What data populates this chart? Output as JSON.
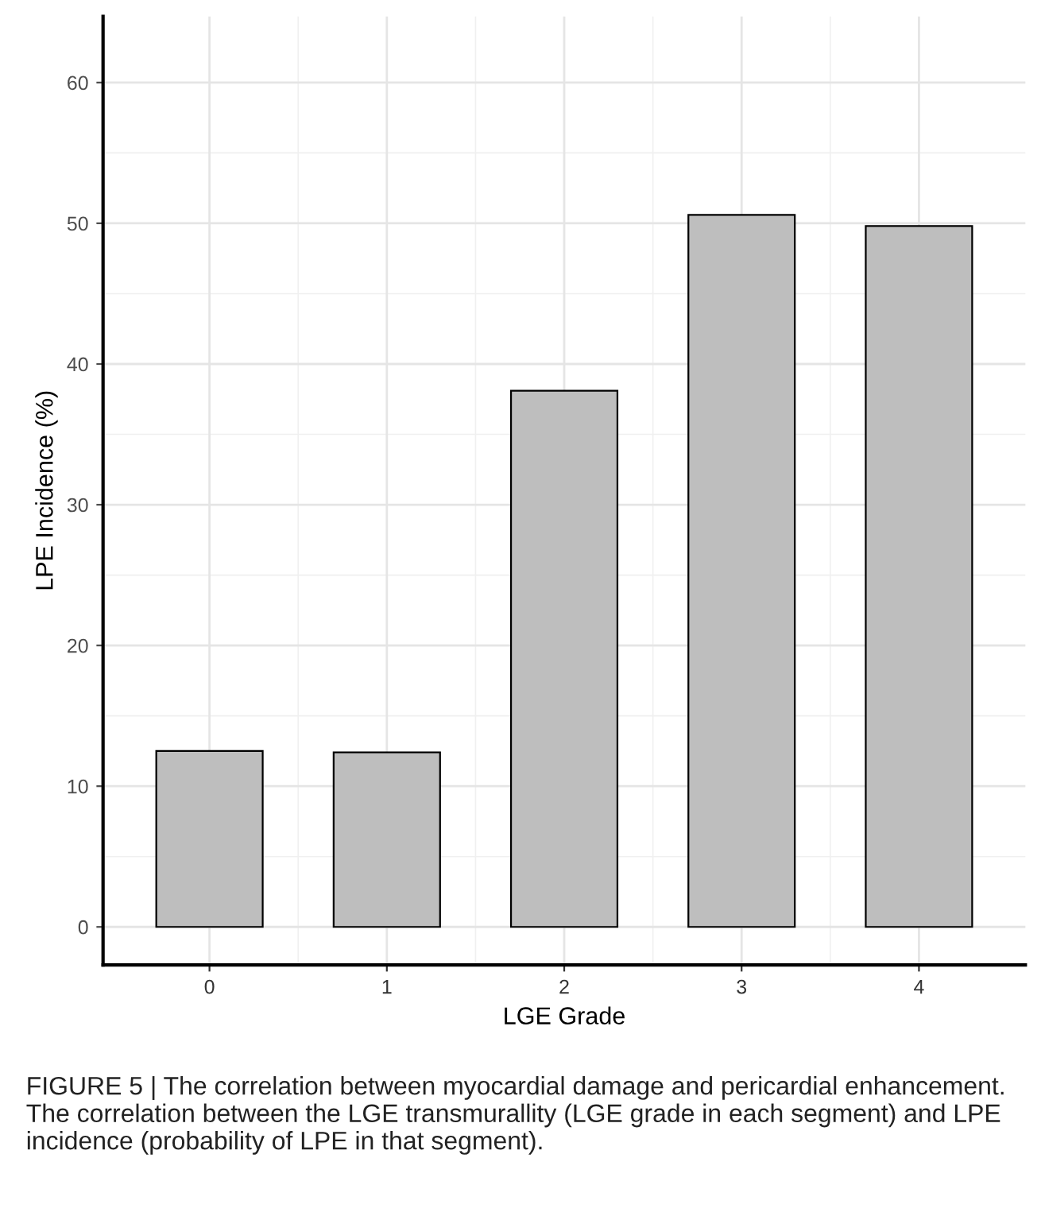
{
  "chart_data": {
    "type": "bar",
    "xlabel": "LGE Grade",
    "ylabel": "LPE Incidence (%)",
    "categories": [
      "0",
      "1",
      "2",
      "3",
      "4"
    ],
    "values": [
      12.5,
      12.4,
      38.1,
      50.6,
      49.8
    ],
    "color": "#bebebe",
    "ylim": [
      -2.7,
      64.7
    ],
    "yticks": [
      0,
      10,
      20,
      30,
      40,
      50,
      60
    ],
    "grid": true,
    "annotations": [
      "FIGURE 5 | The correlation between myocardial damage and pericardial enhancement. The correlation between the LGE transmurallity (LGE grade in each segment) and LPE incidence (probability of LPE in that segment)."
    ]
  }
}
